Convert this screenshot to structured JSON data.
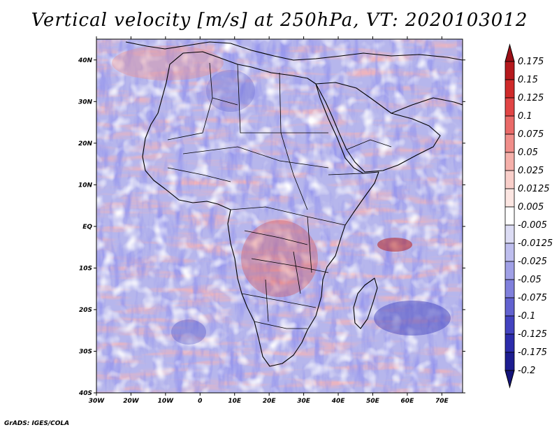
{
  "title": "Vertical velocity [m/s] at 250hPa, VT: 2020103012",
  "credit": "GrADS: IGES/COLA",
  "map": {
    "region": "Africa and surrounding oceans",
    "lon_range": [
      -30,
      76
    ],
    "lat_range": [
      -40,
      45
    ],
    "lat_ticks": [
      {
        "value": 40,
        "label": "40N"
      },
      {
        "value": 30,
        "label": "30N"
      },
      {
        "value": 20,
        "label": "20N"
      },
      {
        "value": 10,
        "label": "10N"
      },
      {
        "value": 0,
        "label": "EQ"
      },
      {
        "value": -10,
        "label": "10S"
      },
      {
        "value": -20,
        "label": "20S"
      },
      {
        "value": -30,
        "label": "30S"
      },
      {
        "value": -40,
        "label": "40S"
      }
    ],
    "lon_ticks": [
      {
        "value": -30,
        "label": "30W"
      },
      {
        "value": -20,
        "label": "20W"
      },
      {
        "value": -10,
        "label": "10W"
      },
      {
        "value": 0,
        "label": "0"
      },
      {
        "value": 10,
        "label": "10E"
      },
      {
        "value": 20,
        "label": "20E"
      },
      {
        "value": 30,
        "label": "30E"
      },
      {
        "value": 40,
        "label": "40E"
      },
      {
        "value": 50,
        "label": "50E"
      },
      {
        "value": 60,
        "label": "60E"
      },
      {
        "value": 70,
        "label": "70E"
      }
    ]
  },
  "colorbar": {
    "levels": [
      {
        "label": "0.175",
        "color": "#9c0f16"
      },
      {
        "label": "0.15",
        "color": "#b5191d"
      },
      {
        "label": "0.125",
        "color": "#cf2a2a"
      },
      {
        "label": "0.1",
        "color": "#e14545"
      },
      {
        "label": "0.075",
        "color": "#ea6a68"
      },
      {
        "label": "0.05",
        "color": "#f08e8a"
      },
      {
        "label": "0.025",
        "color": "#f5b0aa"
      },
      {
        "label": "0.0125",
        "color": "#f9cfca"
      },
      {
        "label": "0.005",
        "color": "#fce6e2"
      },
      {
        "label": "-0.005",
        "color": "#ffffff"
      },
      {
        "label": "-0.0125",
        "color": "#dcdcf4"
      },
      {
        "label": "-0.025",
        "color": "#bebeee"
      },
      {
        "label": "-0.05",
        "color": "#a0a0e6"
      },
      {
        "label": "-0.075",
        "color": "#8080dc"
      },
      {
        "label": "-0.1",
        "color": "#6262d0"
      },
      {
        "label": "-0.125",
        "color": "#4343c0"
      },
      {
        "label": "-0.175",
        "color": "#2c2cab"
      },
      {
        "label": "-0.2",
        "color": "#1d1d90"
      }
    ],
    "bottom_color": "#14147a"
  }
}
